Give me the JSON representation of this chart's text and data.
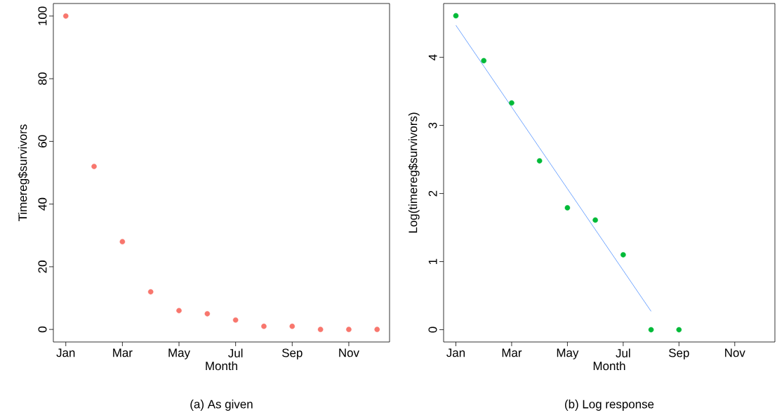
{
  "chart_data": [
    {
      "type": "scatter",
      "xlabel": "Month",
      "ylabel": "Timereg$survivors",
      "categories": [
        "Jan",
        null,
        "Mar",
        null,
        "May",
        null,
        "Jul",
        null,
        "Sep",
        null,
        "Nov",
        null
      ],
      "series": [
        {
          "marker": "circle",
          "values": [
            100,
            52,
            28,
            12,
            6,
            5,
            3,
            1,
            1,
            0,
            0,
            0
          ],
          "color": "#f8766d"
        }
      ],
      "ylim": [
        -4,
        104
      ],
      "yticks": [
        0,
        20,
        40,
        60,
        80,
        100
      ],
      "annotations": [
        "(a) As given"
      ]
    },
    {
      "type": "scatter",
      "xlabel": "Month",
      "ylabel": "Log(timereg$survivors)",
      "categories": [
        "Jan",
        null,
        "Mar",
        null,
        "May",
        null,
        "Jul",
        null,
        "Sep",
        null,
        "Nov",
        null
      ],
      "ylim": [
        -0.18,
        4.79
      ],
      "yticks": [
        0,
        1,
        2,
        3,
        4
      ],
      "series": [
        {
          "marker": "circle",
          "values": [
            4.61,
            3.95,
            3.33,
            2.48,
            1.79,
            1.61,
            1.1,
            0,
            0,
            null,
            null,
            null
          ],
          "color": "#00ba38"
        },
        {
          "type": "line",
          "marker": "none",
          "values": [
            4.47,
            3.87,
            3.27,
            2.67,
            2.07,
            1.47,
            0.87,
            0.27,
            null,
            null,
            null,
            null
          ],
          "color": "#619cff"
        }
      ],
      "annotations": [
        "(b) Log response"
      ]
    }
  ]
}
